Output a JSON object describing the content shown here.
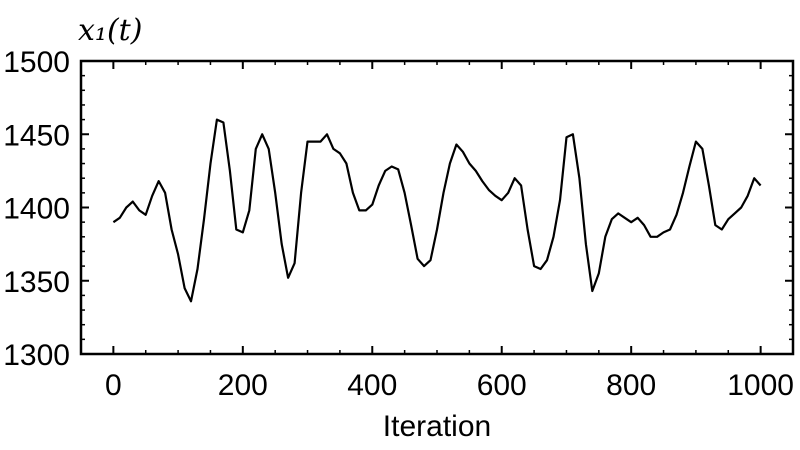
{
  "chart_data": {
    "type": "line",
    "title": "x₁(t)",
    "xlabel": "Iteration",
    "ylabel": "",
    "xlim": [
      -50,
      1050
    ],
    "ylim": [
      1300,
      1500
    ],
    "x_ticks": [
      0,
      200,
      400,
      600,
      800,
      1000
    ],
    "y_ticks": [
      1300,
      1350,
      1400,
      1450,
      1500
    ],
    "grid": false,
    "series": [
      {
        "line_color": "#000000",
        "x": [
          0,
          10,
          20,
          30,
          40,
          50,
          60,
          70,
          80,
          90,
          100,
          110,
          120,
          130,
          140,
          150,
          160,
          170,
          180,
          190,
          200,
          210,
          220,
          230,
          240,
          250,
          260,
          270,
          280,
          290,
          300,
          310,
          320,
          330,
          340,
          350,
          360,
          370,
          380,
          390,
          400,
          410,
          420,
          430,
          440,
          450,
          460,
          470,
          480,
          490,
          500,
          510,
          520,
          530,
          540,
          550,
          560,
          570,
          580,
          590,
          600,
          610,
          620,
          630,
          640,
          650,
          660,
          670,
          680,
          690,
          700,
          710,
          720,
          730,
          740,
          750,
          760,
          770,
          780,
          790,
          800,
          810,
          820,
          830,
          840,
          850,
          860,
          870,
          880,
          890,
          900,
          910,
          920,
          930,
          940,
          950,
          960,
          970,
          980,
          990,
          1000
        ],
        "y": [
          1390,
          1393,
          1400,
          1404,
          1398,
          1395,
          1408,
          1418,
          1410,
          1385,
          1368,
          1345,
          1336,
          1358,
          1392,
          1430,
          1460,
          1458,
          1425,
          1385,
          1383,
          1398,
          1440,
          1450,
          1440,
          1410,
          1375,
          1352,
          1362,
          1410,
          1445,
          1445,
          1445,
          1450,
          1440,
          1437,
          1430,
          1410,
          1398,
          1398,
          1402,
          1415,
          1425,
          1428,
          1426,
          1410,
          1388,
          1365,
          1360,
          1364,
          1385,
          1410,
          1430,
          1443,
          1438,
          1430,
          1425,
          1418,
          1412,
          1408,
          1405,
          1410,
          1420,
          1415,
          1385,
          1360,
          1358,
          1364,
          1380,
          1405,
          1448,
          1450,
          1420,
          1375,
          1343,
          1355,
          1380,
          1392,
          1396,
          1393,
          1390,
          1393,
          1388,
          1380,
          1380,
          1383,
          1385,
          1395,
          1410,
          1428,
          1445,
          1440,
          1415,
          1388,
          1385,
          1392,
          1396,
          1400,
          1408,
          1420,
          1415
        ]
      }
    ]
  }
}
